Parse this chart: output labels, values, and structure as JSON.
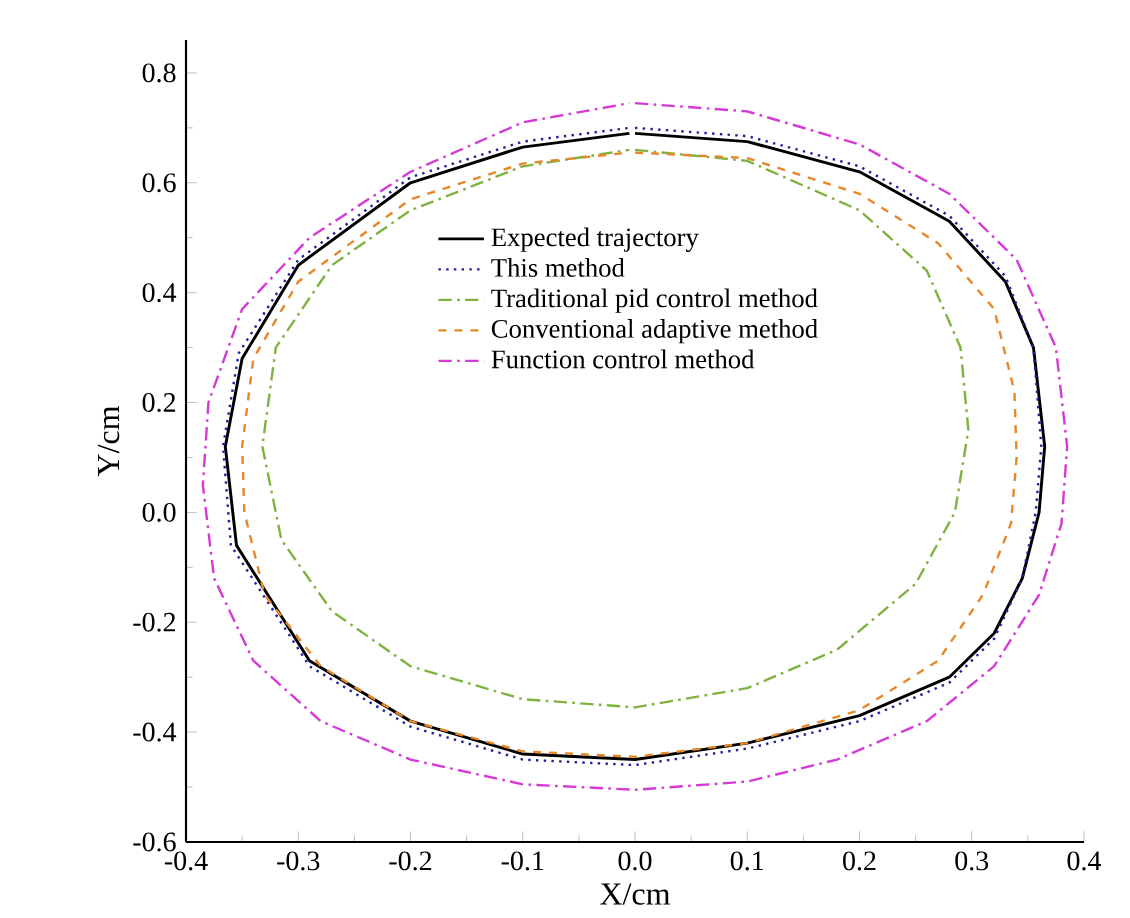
{
  "chart_data": {
    "type": "line",
    "xlabel": "X/cm",
    "ylabel": "Y/cm",
    "xlim": [
      -0.4,
      0.4
    ],
    "xticks": [
      -0.4,
      -0.3,
      -0.2,
      -0.1,
      {
        "value": 0,
        "label": "0.0"
      },
      0.1,
      0.2,
      0.3,
      0.4
    ],
    "ylim": [
      -0.6,
      0.86
    ],
    "yticks": [
      -0.6,
      -0.4,
      -0.2,
      {
        "value": 0,
        "label": "0.0"
      },
      0.2,
      0.4,
      0.6,
      0.8
    ],
    "legend": "center",
    "grid": false,
    "marker": "none",
    "series": [
      {
        "name": "Expected trajectory",
        "color": "#000000",
        "line_style": "solid",
        "x": [
          0,
          0.1,
          0.2,
          0.28,
          0.33,
          0.355,
          0.365,
          0.36,
          0.345,
          0.32,
          0.28,
          0.2,
          0.1,
          0,
          -0.1,
          -0.2,
          -0.29,
          -0.355,
          -0.365,
          -0.35,
          -0.3,
          -0.2,
          -0.1,
          -0.005
        ],
        "values": [
          0.69,
          0.675,
          0.62,
          0.53,
          0.42,
          0.3,
          0.12,
          0.0,
          -0.12,
          -0.22,
          -0.3,
          -0.37,
          -0.42,
          -0.45,
          -0.44,
          -0.38,
          -0.27,
          -0.06,
          0.12,
          0.28,
          0.45,
          0.6,
          0.665,
          0.69
        ]
      },
      {
        "name": "This method",
        "color": "#1f1f9f",
        "line_style": "dotted",
        "x": [
          0,
          0.1,
          0.2,
          0.28,
          0.33,
          0.355,
          0.362,
          0.357,
          0.345,
          0.32,
          0.28,
          0.2,
          0.1,
          0,
          -0.1,
          -0.2,
          -0.29,
          -0.36,
          -0.367,
          -0.353,
          -0.3,
          -0.2,
          -0.1,
          -0.005
        ],
        "values": [
          0.7,
          0.685,
          0.63,
          0.54,
          0.43,
          0.3,
          0.12,
          0.0,
          -0.12,
          -0.23,
          -0.31,
          -0.38,
          -0.43,
          -0.46,
          -0.45,
          -0.39,
          -0.28,
          -0.06,
          0.12,
          0.29,
          0.46,
          0.61,
          0.675,
          0.7
        ]
      },
      {
        "name": "Traditional pid control method",
        "color": "#7fb241",
        "line_style": "dashdot",
        "x": [
          0,
          0.1,
          0.2,
          0.26,
          0.29,
          0.297,
          0.285,
          0.25,
          0.18,
          0.1,
          0,
          -0.1,
          -0.2,
          -0.27,
          -0.315,
          -0.332,
          -0.32,
          -0.27,
          -0.2,
          -0.1,
          -0.005
        ],
        "values": [
          0.66,
          0.64,
          0.55,
          0.44,
          0.3,
          0.15,
          0.0,
          -0.13,
          -0.25,
          -0.32,
          -0.355,
          -0.34,
          -0.28,
          -0.18,
          -0.05,
          0.12,
          0.3,
          0.45,
          0.55,
          0.63,
          0.66
        ]
      },
      {
        "name": "Conventional adaptive method",
        "color": "#e8862a",
        "line_style": "dashed",
        "x": [
          0,
          0.1,
          0.2,
          0.27,
          0.32,
          0.338,
          0.34,
          0.335,
          0.31,
          0.27,
          0.2,
          0.1,
          0,
          -0.1,
          -0.2,
          -0.28,
          -0.33,
          -0.348,
          -0.35,
          -0.34,
          -0.3,
          -0.2,
          -0.1,
          -0.005
        ],
        "values": [
          0.655,
          0.645,
          0.58,
          0.49,
          0.37,
          0.22,
          0.1,
          -0.02,
          -0.15,
          -0.27,
          -0.36,
          -0.42,
          -0.445,
          -0.435,
          -0.38,
          -0.28,
          -0.15,
          0.0,
          0.12,
          0.28,
          0.42,
          0.57,
          0.635,
          0.655
        ]
      },
      {
        "name": "Function control method",
        "color": "#d63ad6",
        "line_style": "dashdot",
        "x": [
          0,
          0.1,
          0.2,
          0.28,
          0.34,
          0.375,
          0.385,
          0.38,
          0.36,
          0.32,
          0.26,
          0.18,
          0.1,
          0,
          -0.1,
          -0.2,
          -0.28,
          -0.34,
          -0.375,
          -0.385,
          -0.38,
          -0.35,
          -0.29,
          -0.2,
          -0.1,
          -0.005
        ],
        "values": [
          0.745,
          0.73,
          0.67,
          0.58,
          0.46,
          0.3,
          0.12,
          -0.02,
          -0.15,
          -0.28,
          -0.38,
          -0.45,
          -0.49,
          -0.505,
          -0.495,
          -0.45,
          -0.38,
          -0.27,
          -0.12,
          0.05,
          0.2,
          0.37,
          0.5,
          0.62,
          0.71,
          0.745
        ]
      }
    ]
  }
}
